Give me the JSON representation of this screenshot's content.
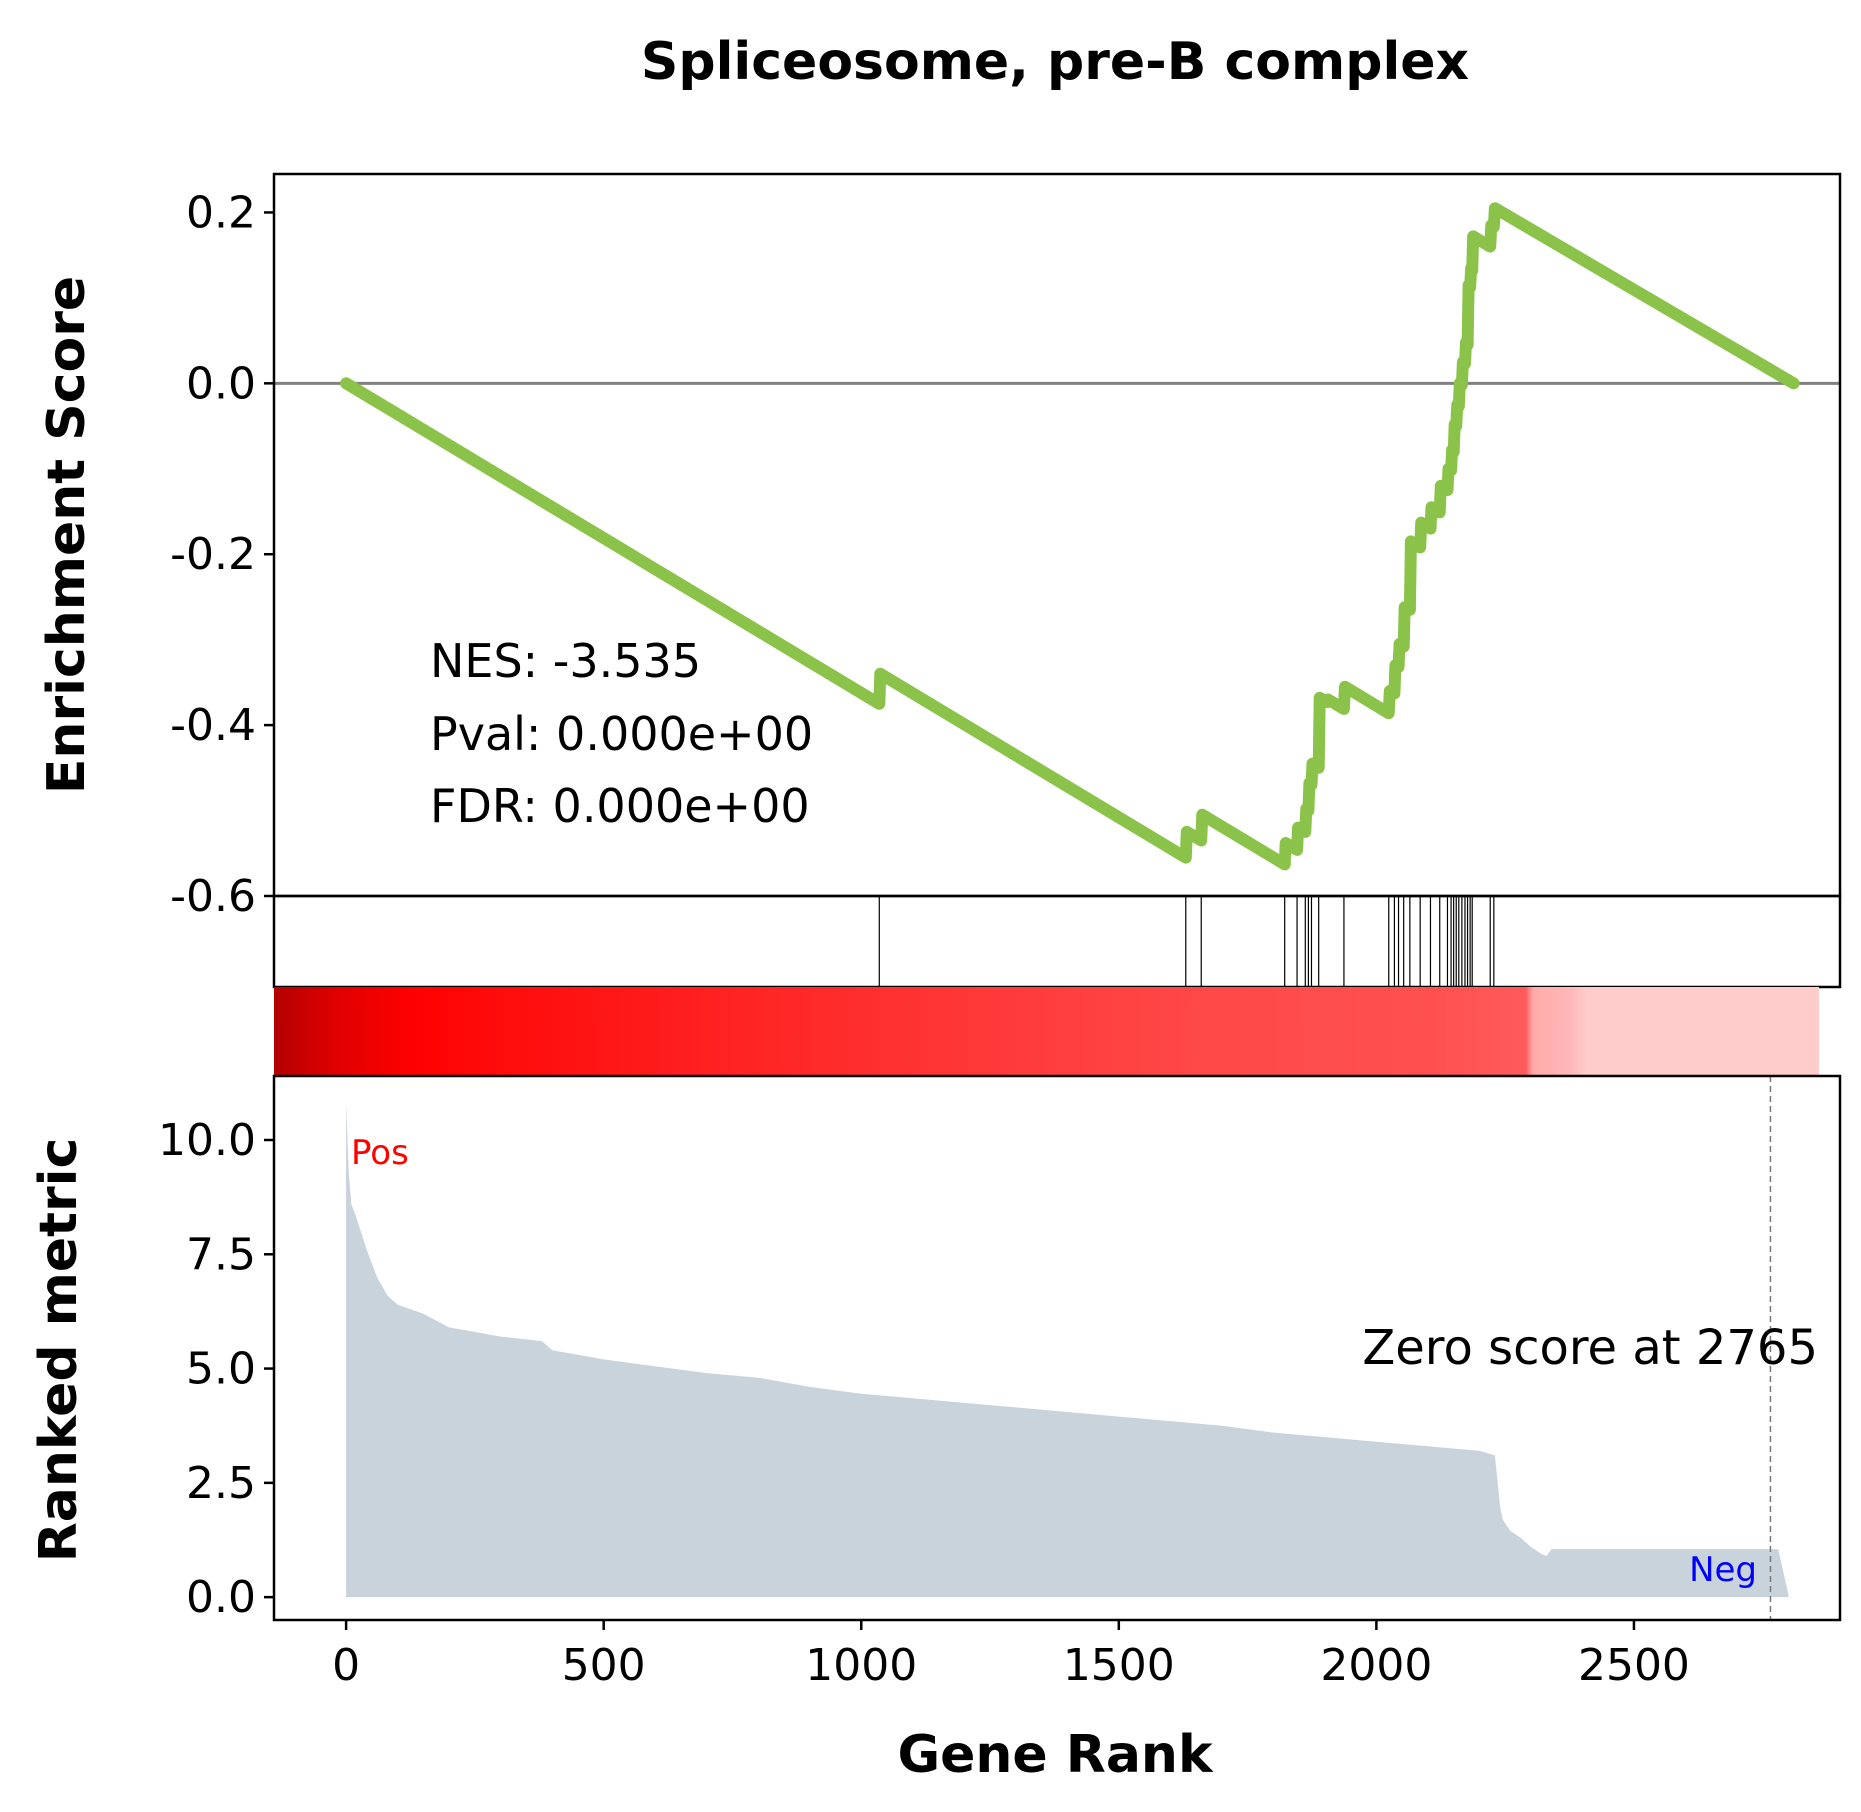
{
  "chart_data": {
    "type": "line",
    "title": "Spliceosome, pre-B complex",
    "xlabel": "Gene Rank",
    "xlim": [
      -140,
      2900
    ],
    "x_ticks": [
      {
        "value": 0,
        "label": "0"
      },
      {
        "value": 500,
        "label": "500"
      },
      {
        "value": 1000,
        "label": "1000"
      },
      {
        "value": 1500,
        "label": "1500"
      },
      {
        "value": 2000,
        "label": "2000"
      },
      {
        "value": 2500,
        "label": "2500"
      }
    ],
    "es_panel": {
      "ylabel": "Enrichment Score",
      "ylim": [
        -0.6,
        0.245
      ],
      "y_ticks": [
        {
          "value": 0.2,
          "label": "0.2"
        },
        {
          "value": 0.0,
          "label": "0.0"
        },
        {
          "value": -0.2,
          "label": "-0.2"
        },
        {
          "value": -0.4,
          "label": "-0.4"
        },
        {
          "value": -0.6,
          "label": "-0.6"
        }
      ],
      "baseline": 0,
      "line_color": "#8bc34a",
      "es_curve": {
        "x": [
          0,
          1035,
          1037,
          1630,
          1632,
          1660,
          1662,
          1822,
          1824,
          1846,
          1848,
          1862,
          1864,
          1868,
          1870,
          1874,
          1876,
          1888,
          1890,
          1905,
          1906,
          1937,
          1939,
          2024,
          2026,
          2035,
          2037,
          2043,
          2045,
          2053,
          2055,
          2065,
          2067,
          2085,
          2087,
          2105,
          2107,
          2123,
          2125,
          2138,
          2140,
          2145,
          2147,
          2150,
          2152,
          2155,
          2157,
          2160,
          2162,
          2166,
          2168,
          2172,
          2174,
          2177,
          2179,
          2182,
          2184,
          2186,
          2188,
          2221,
          2223,
          2228,
          2230,
          2810
        ],
        "y": [
          0.0,
          -0.375,
          -0.34,
          -0.555,
          -0.525,
          -0.535,
          -0.505,
          -0.563,
          -0.538,
          -0.546,
          -0.52,
          -0.525,
          -0.498,
          -0.5,
          -0.468,
          -0.47,
          -0.445,
          -0.45,
          -0.368,
          -0.373,
          -0.37,
          -0.381,
          -0.355,
          -0.386,
          -0.36,
          -0.363,
          -0.33,
          -0.332,
          -0.305,
          -0.308,
          -0.262,
          -0.265,
          -0.185,
          -0.192,
          -0.163,
          -0.17,
          -0.145,
          -0.151,
          -0.12,
          -0.125,
          -0.1,
          -0.102,
          -0.078,
          -0.08,
          -0.048,
          -0.05,
          -0.025,
          -0.027,
          0.0,
          -0.002,
          0.025,
          0.023,
          0.048,
          0.045,
          0.115,
          0.112,
          0.135,
          0.132,
          0.172,
          0.16,
          0.185,
          0.183,
          0.205,
          0.0
        ]
      }
    },
    "hits_panel": {
      "hit_positions": [
        1035,
        1630,
        1660,
        1822,
        1846,
        1862,
        1868,
        1874,
        1888,
        1937,
        2024,
        2035,
        2043,
        2053,
        2065,
        2085,
        2105,
        2123,
        2138,
        2145,
        2150,
        2155,
        2160,
        2166,
        2172,
        2177,
        2182,
        2186,
        2221,
        2228
      ]
    },
    "color_bar": {
      "note_colors": [
        "#b30000",
        "#ff0000",
        "#ff3333",
        "#ff5555",
        "#ffaaaa",
        "#ffcccc"
      ]
    },
    "ranked_panel": {
      "ylabel": "Ranked metric",
      "ylim": [
        -0.5,
        11.4
      ],
      "y_ticks": [
        {
          "value": 0.0,
          "label": "0.0"
        },
        {
          "value": 2.5,
          "label": "2.5"
        },
        {
          "value": 5.0,
          "label": "5.0"
        },
        {
          "value": 7.5,
          "label": "7.5"
        },
        {
          "value": 10.0,
          "label": "10.0"
        }
      ],
      "fill_color": "#c9d3dc",
      "ranked_curve": {
        "x": [
          0,
          5,
          10,
          20,
          40,
          60,
          80,
          100,
          150,
          200,
          250,
          300,
          380,
          400,
          500,
          600,
          700,
          800,
          900,
          1000,
          1100,
          1200,
          1300,
          1400,
          1500,
          1600,
          1700,
          1800,
          1900,
          2000,
          2100,
          2200,
          2230,
          2240,
          2245,
          2260,
          2280,
          2300,
          2320,
          2330,
          2340,
          2780,
          2800
        ],
        "y": [
          10.8,
          9.3,
          8.6,
          8.3,
          7.6,
          7.0,
          6.6,
          6.4,
          6.2,
          5.9,
          5.8,
          5.7,
          5.6,
          5.4,
          5.2,
          5.05,
          4.9,
          4.8,
          4.6,
          4.45,
          4.35,
          4.25,
          4.15,
          4.05,
          3.95,
          3.85,
          3.75,
          3.6,
          3.5,
          3.4,
          3.3,
          3.2,
          3.1,
          2.0,
          1.7,
          1.45,
          1.3,
          1.1,
          0.95,
          0.9,
          1.05,
          1.05,
          0.05
        ]
      },
      "zero_score_rank": 2765,
      "zero_label": "Zero score at 2765",
      "pos_label": "Pos",
      "neg_label": "Neg"
    },
    "stats": {
      "nes": "NES: -3.535",
      "pval": "Pval: 0.000e+00",
      "fdr": "FDR: 0.000e+00"
    }
  }
}
